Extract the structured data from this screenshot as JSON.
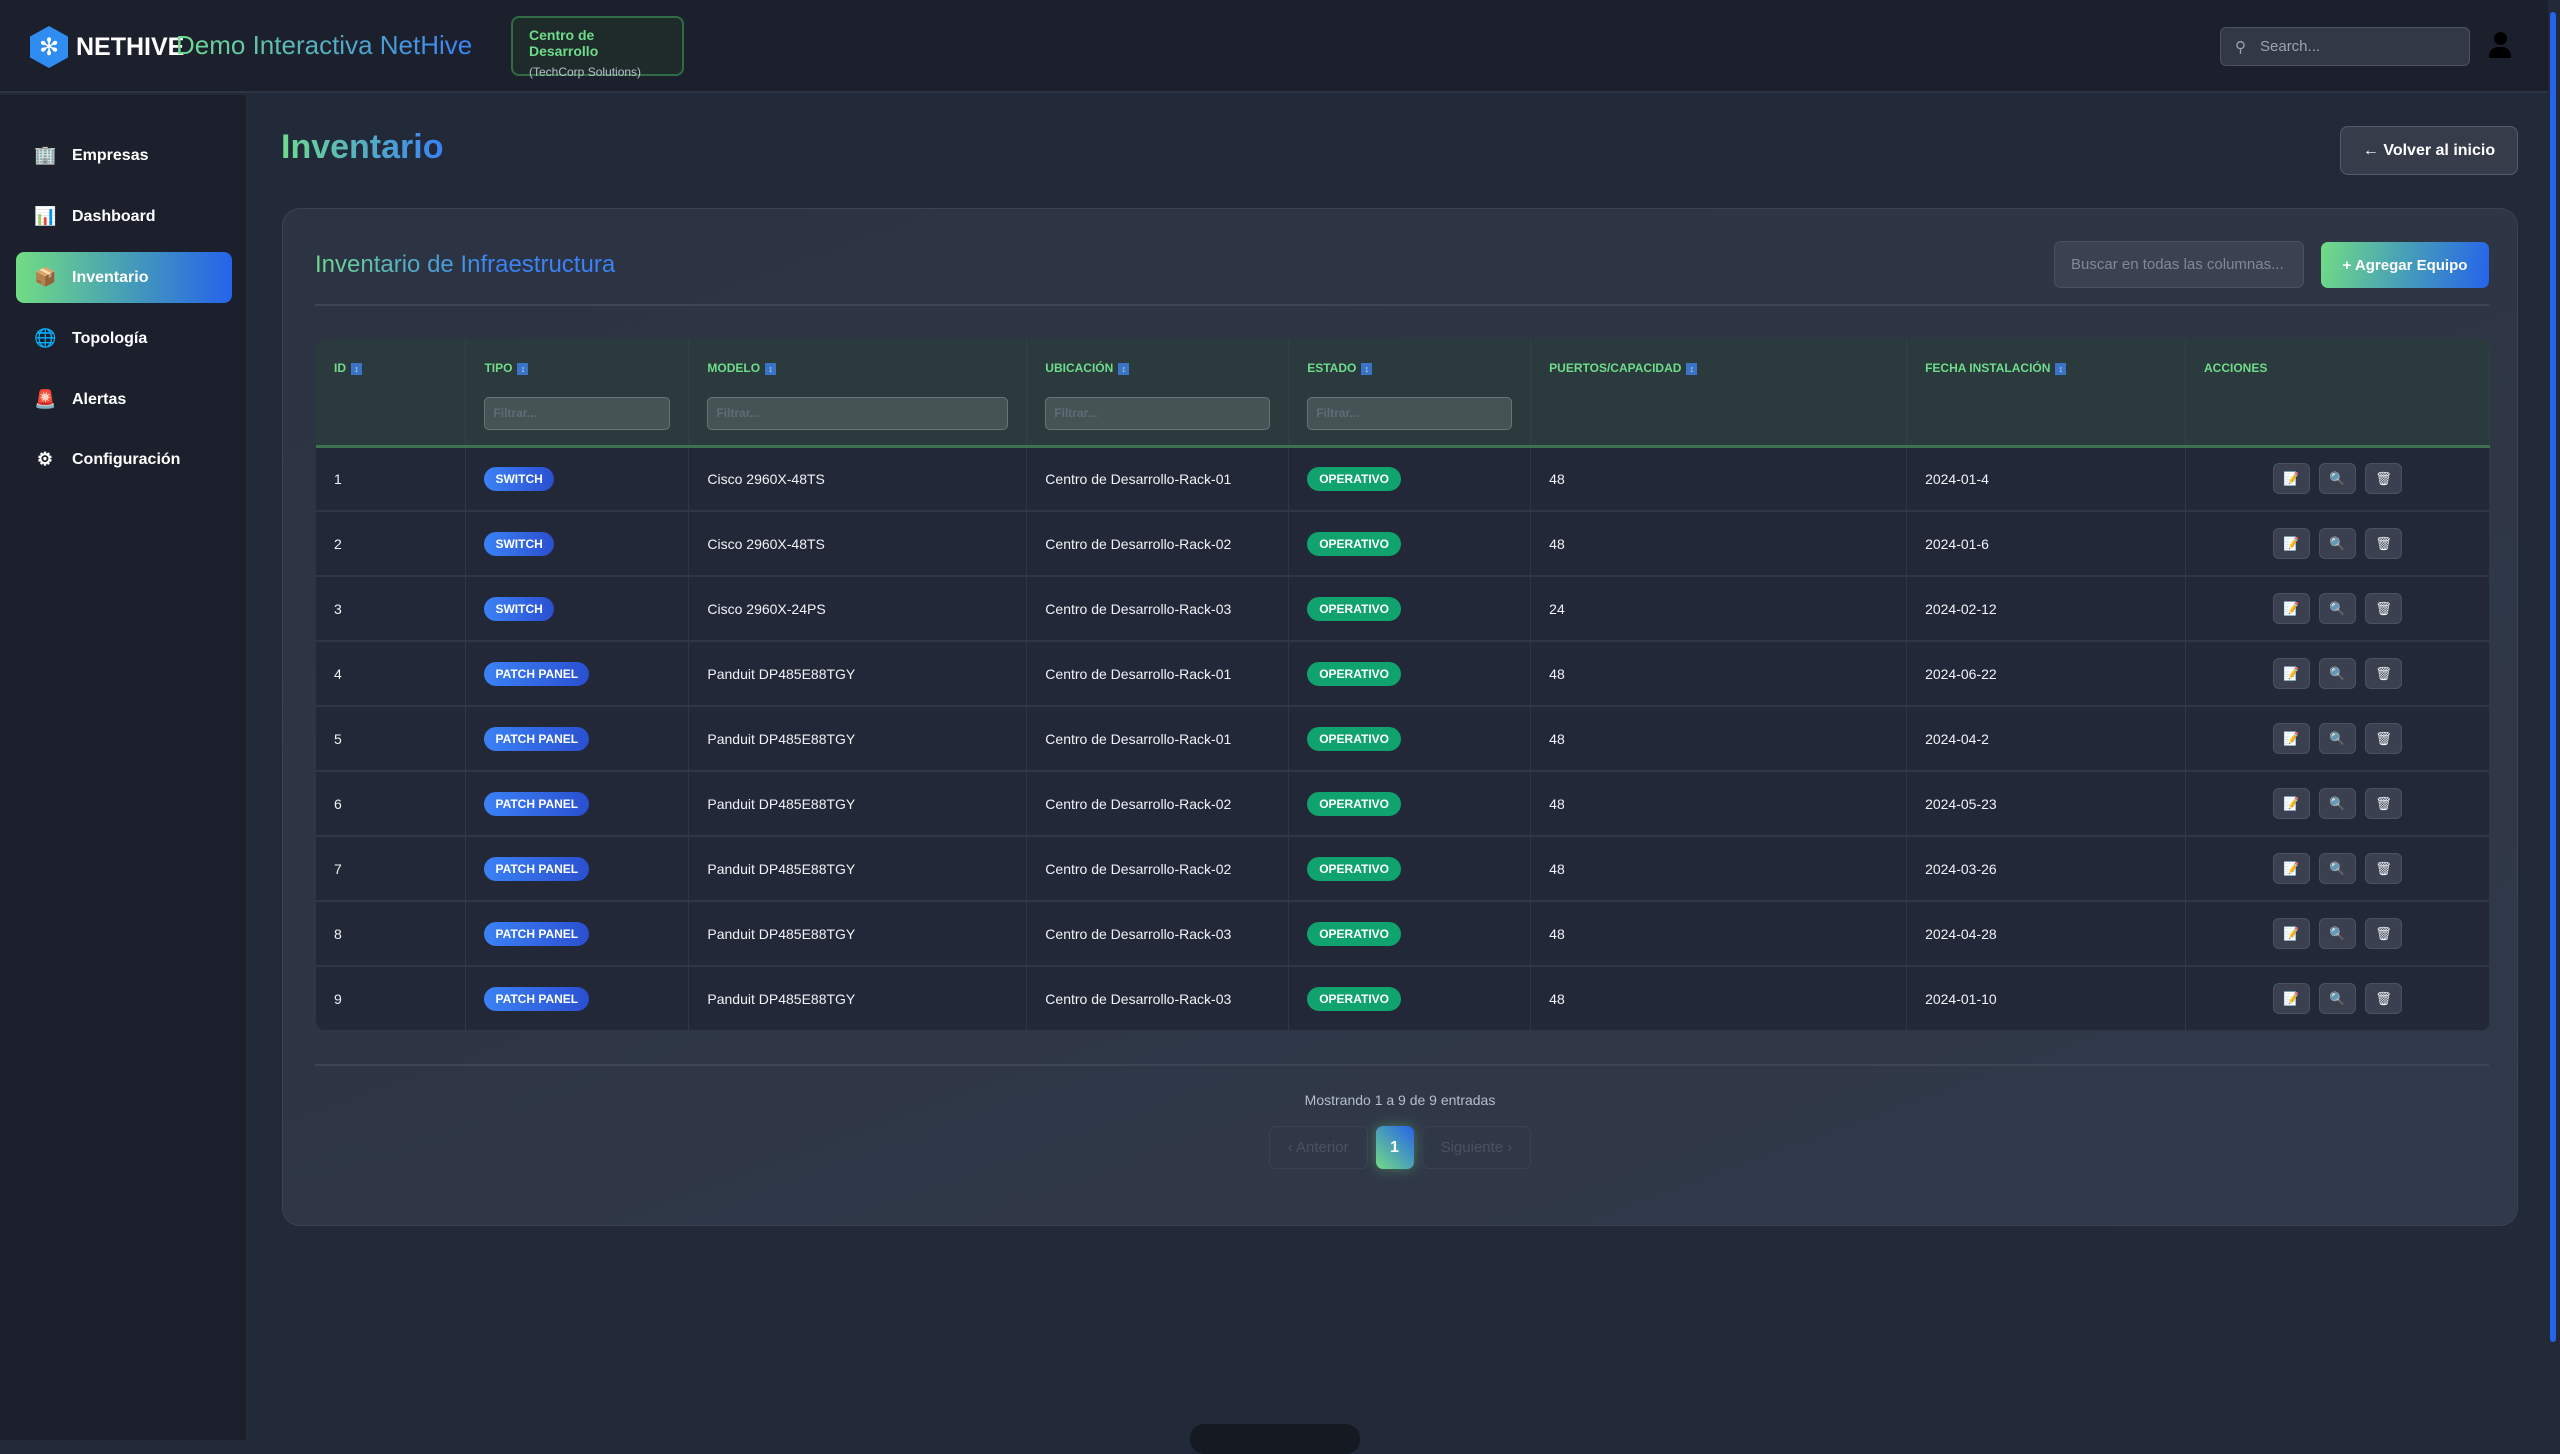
{
  "header": {
    "brand": "NETHIVE",
    "title": "Demo Interactiva NetHive",
    "context_name": "Centro de Desarrollo",
    "context_company": "(TechCorp Solutions)",
    "search_placeholder": "Search..."
  },
  "sidebar": {
    "items": [
      {
        "label": "Empresas",
        "icon": "🏢"
      },
      {
        "label": "Dashboard",
        "icon": "📊"
      },
      {
        "label": "Inventario",
        "icon": "📦",
        "active": true
      },
      {
        "label": "Topología",
        "icon": "🌐"
      },
      {
        "label": "Alertas",
        "icon": "🚨"
      },
      {
        "label": "Configuración",
        "icon": "⚙"
      }
    ]
  },
  "page": {
    "title": "Inventario",
    "back_label": "← Volver al inicio"
  },
  "card": {
    "title": "Inventario de Infraestructura",
    "search_placeholder": "Buscar en todas las columnas...",
    "add_label": "+ Agregar Equipo"
  },
  "table": {
    "columns": [
      "ID",
      "TIPO",
      "MODELO",
      "UBICACIÓN",
      "ESTADO",
      "PUERTOS/CAPACIDAD",
      "FECHA INSTALACIÓN",
      "ACCIONES"
    ],
    "filter_placeholder": "Filtrar...",
    "rows": [
      {
        "id": "1",
        "tipo": "SWITCH",
        "modelo": "Cisco 2960X-48TS",
        "ubicacion": "Centro de Desarrollo-Rack-01",
        "estado": "OPERATIVO",
        "puertos": "48",
        "fecha": "2024-01-4"
      },
      {
        "id": "2",
        "tipo": "SWITCH",
        "modelo": "Cisco 2960X-48TS",
        "ubicacion": "Centro de Desarrollo-Rack-02",
        "estado": "OPERATIVO",
        "puertos": "48",
        "fecha": "2024-01-6"
      },
      {
        "id": "3",
        "tipo": "SWITCH",
        "modelo": "Cisco 2960X-24PS",
        "ubicacion": "Centro de Desarrollo-Rack-03",
        "estado": "OPERATIVO",
        "puertos": "24",
        "fecha": "2024-02-12"
      },
      {
        "id": "4",
        "tipo": "PATCH PANEL",
        "modelo": "Panduit DP485E88TGY",
        "ubicacion": "Centro de Desarrollo-Rack-01",
        "estado": "OPERATIVO",
        "puertos": "48",
        "fecha": "2024-06-22"
      },
      {
        "id": "5",
        "tipo": "PATCH PANEL",
        "modelo": "Panduit DP485E88TGY",
        "ubicacion": "Centro de Desarrollo-Rack-01",
        "estado": "OPERATIVO",
        "puertos": "48",
        "fecha": "2024-04-2"
      },
      {
        "id": "6",
        "tipo": "PATCH PANEL",
        "modelo": "Panduit DP485E88TGY",
        "ubicacion": "Centro de Desarrollo-Rack-02",
        "estado": "OPERATIVO",
        "puertos": "48",
        "fecha": "2024-05-23"
      },
      {
        "id": "7",
        "tipo": "PATCH PANEL",
        "modelo": "Panduit DP485E88TGY",
        "ubicacion": "Centro de Desarrollo-Rack-02",
        "estado": "OPERATIVO",
        "puertos": "48",
        "fecha": "2024-03-26"
      },
      {
        "id": "8",
        "tipo": "PATCH PANEL",
        "modelo": "Panduit DP485E88TGY",
        "ubicacion": "Centro de Desarrollo-Rack-03",
        "estado": "OPERATIVO",
        "puertos": "48",
        "fecha": "2024-04-28"
      },
      {
        "id": "9",
        "tipo": "PATCH PANEL",
        "modelo": "Panduit DP485E88TGY",
        "ubicacion": "Centro de Desarrollo-Rack-03",
        "estado": "OPERATIVO",
        "puertos": "48",
        "fecha": "2024-01-10"
      }
    ],
    "action_icons": [
      "edit-document-icon",
      "search-icon",
      "trash-icon"
    ]
  },
  "pagination": {
    "info": "Mostrando 1 a 9 de 9 entradas",
    "prev": "‹ Anterior",
    "current": "1",
    "next": "Siguiente ›"
  },
  "colors": {
    "accent_green": "#6fdc8c",
    "accent_blue": "#2563eb",
    "status_ok": "#10a36e"
  }
}
